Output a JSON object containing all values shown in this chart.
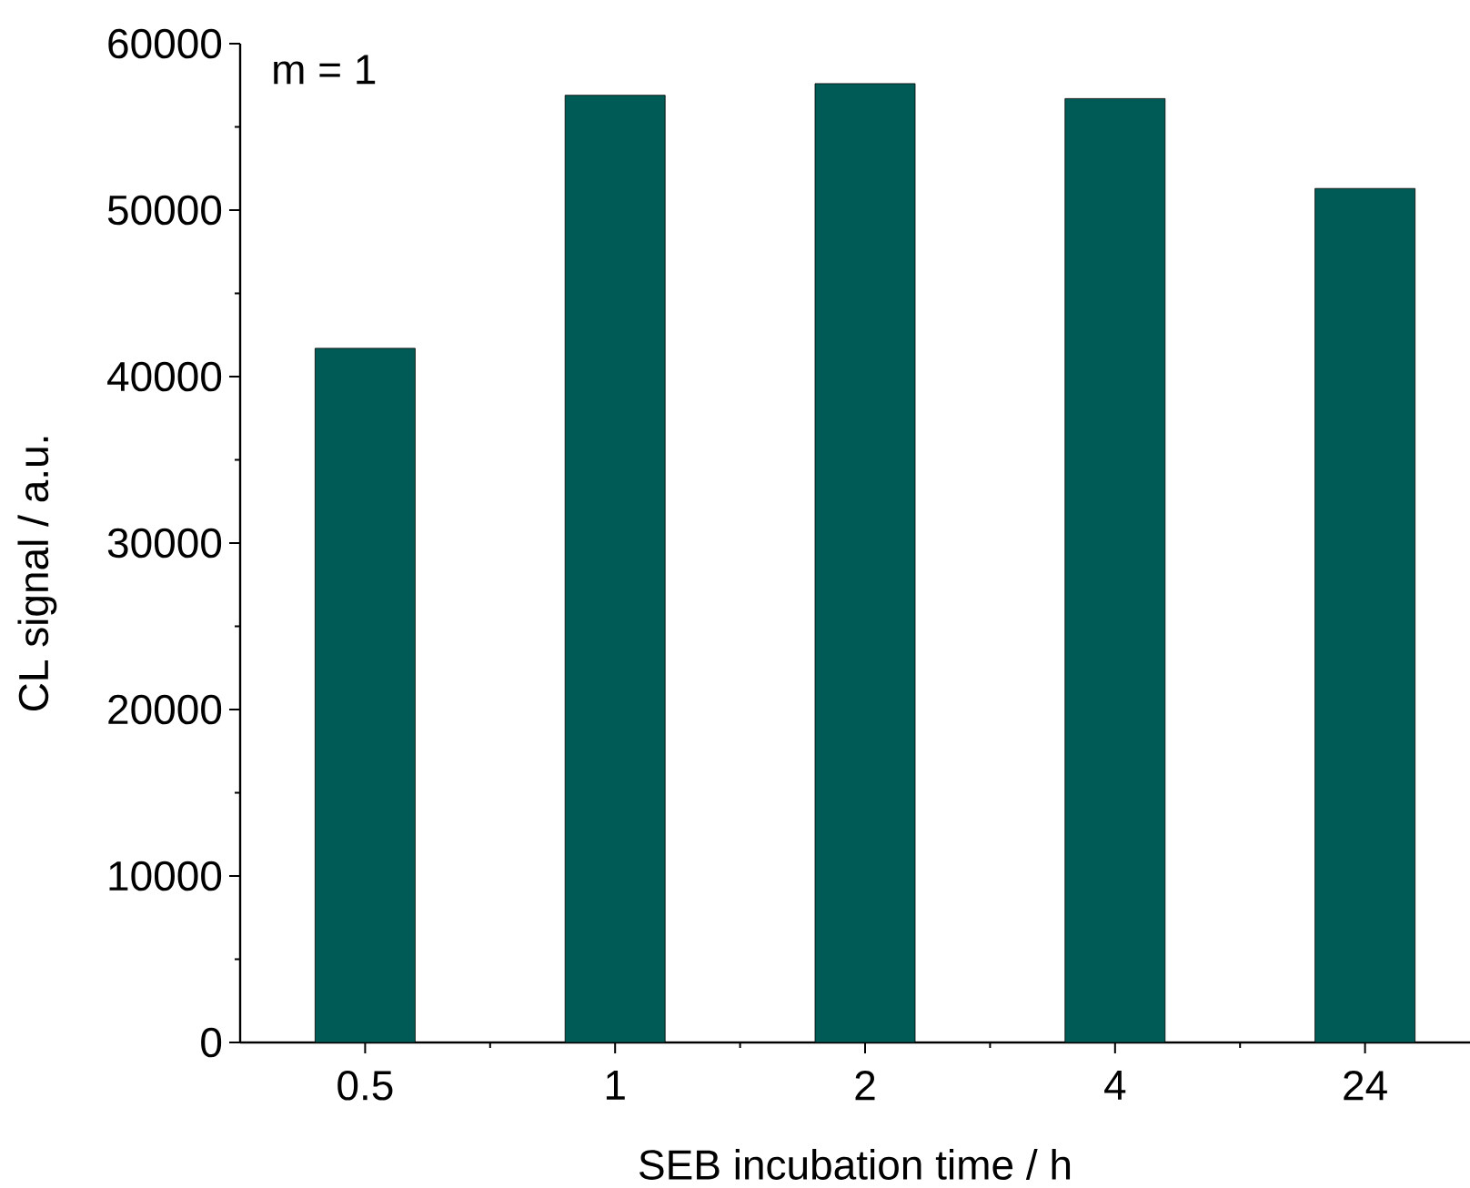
{
  "chart_data": {
    "type": "bar",
    "xlabel": "SEB incubation time / h",
    "ylabel": "CL signal / a.u.",
    "categories": [
      "0.5",
      "1",
      "2",
      "4",
      "24"
    ],
    "values": [
      41700,
      56900,
      57600,
      56700,
      51300
    ],
    "color": "#005a55",
    "ylim": [
      0,
      60000
    ],
    "yticks": [
      0,
      10000,
      20000,
      30000,
      40000,
      50000,
      60000
    ],
    "annotations": [
      "m = 1"
    ],
    "grid": false
  }
}
